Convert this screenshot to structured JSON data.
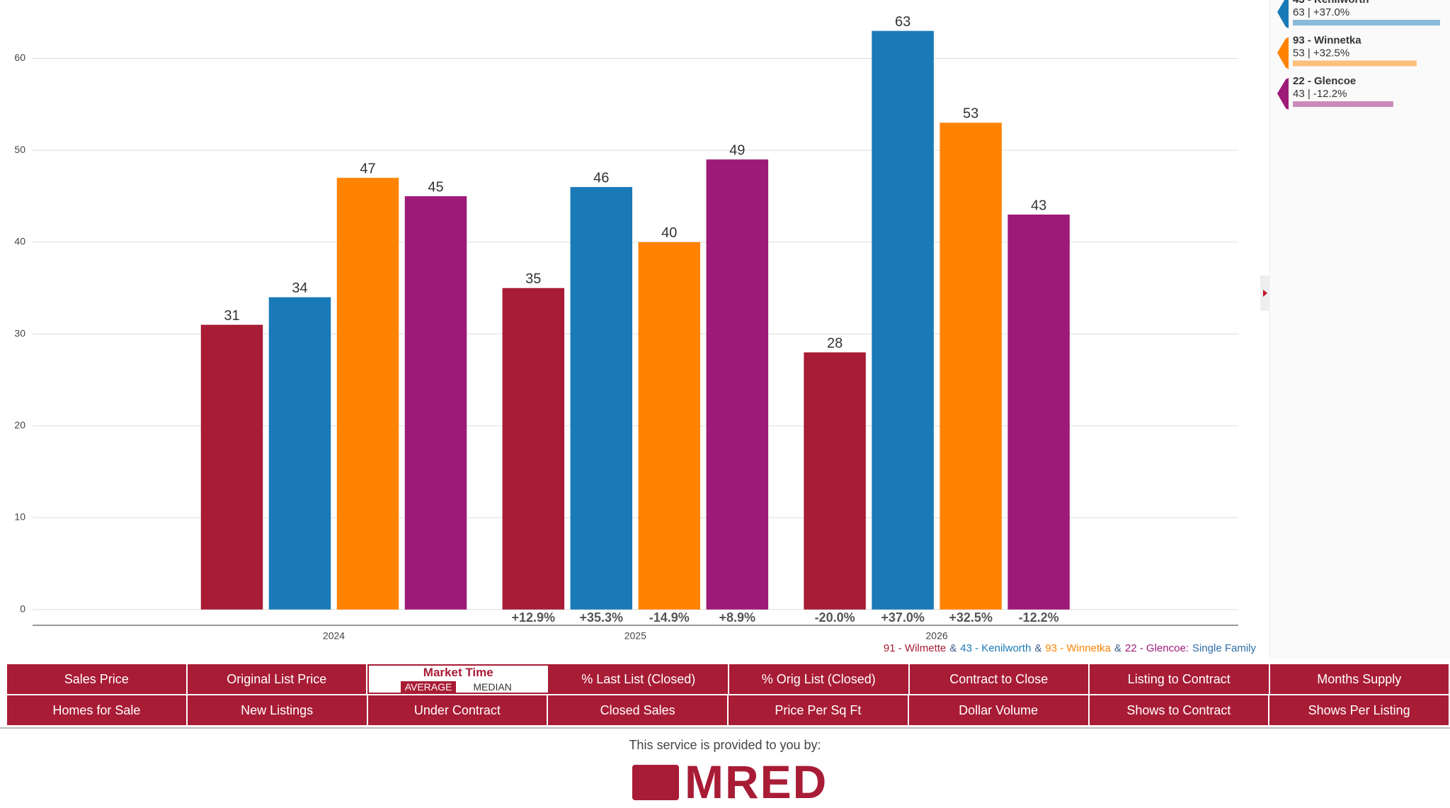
{
  "chart_data": {
    "type": "bar",
    "categories": [
      "2024",
      "2025",
      "2026"
    ],
    "series": [
      {
        "name": "91 - Wilmette",
        "color": "#a81c35",
        "values": [
          31,
          35,
          28
        ],
        "change_labels": [
          null,
          "+12.9%",
          "-20.0%"
        ],
        "legend_detail": null
      },
      {
        "name": "43 - Kenilworth",
        "color": "#1a7ab8",
        "values": [
          34,
          46,
          63
        ],
        "change_labels": [
          null,
          "+35.3%",
          "+37.0%"
        ],
        "legend_detail": "63 | +37.0%"
      },
      {
        "name": "93 - Winnetka",
        "color": "#ff8300",
        "values": [
          47,
          40,
          53
        ],
        "change_labels": [
          null,
          "-14.9%",
          "+32.5%"
        ],
        "legend_detail": "53 | +32.5%"
      },
      {
        "name": "22 - Glencoe",
        "color": "#9e1a78",
        "values": [
          45,
          49,
          43
        ],
        "change_labels": [
          null,
          "+8.9%",
          "-12.2%"
        ],
        "legend_detail": "43 | -12.2%"
      }
    ],
    "ylim": [
      0,
      66
    ],
    "yticks": [
      0,
      10,
      20,
      30,
      40,
      50,
      60
    ],
    "grid": true,
    "caption_parts": [
      {
        "text": "91 - Wilmette",
        "color": "#a81c35"
      },
      {
        "text": "&",
        "color": "#3a5a8a"
      },
      {
        "text": "43 - Kenilworth",
        "color": "#1a7ab8"
      },
      {
        "text": "&",
        "color": "#3a5a8a"
      },
      {
        "text": "93 - Winnetka",
        "color": "#ff8300"
      },
      {
        "text": "&",
        "color": "#3a5a8a"
      },
      {
        "text": "22 - Glencoe:",
        "color": "#9e1a78"
      },
      {
        "text": "Single Family",
        "color": "#2f6fa8"
      }
    ]
  },
  "tabs": [
    [
      "Sales Price",
      "Original List Price",
      "Market Time",
      "% Last List (Closed)",
      "% Orig List (Closed)",
      "Contract to Close",
      "Listing to Contract",
      "Months Supply"
    ],
    [
      "Homes for Sale",
      "New Listings",
      "Under Contract",
      "Closed Sales",
      "Price Per Sq Ft",
      "Dollar Volume",
      "Shows to Contract",
      "Shows Per Listing"
    ]
  ],
  "selected_tab": "Market Time",
  "market_time_options": [
    "AVERAGE",
    "MEDIAN"
  ],
  "footer": {
    "text": "This service is provided to you by:",
    "logo": "MRED"
  }
}
